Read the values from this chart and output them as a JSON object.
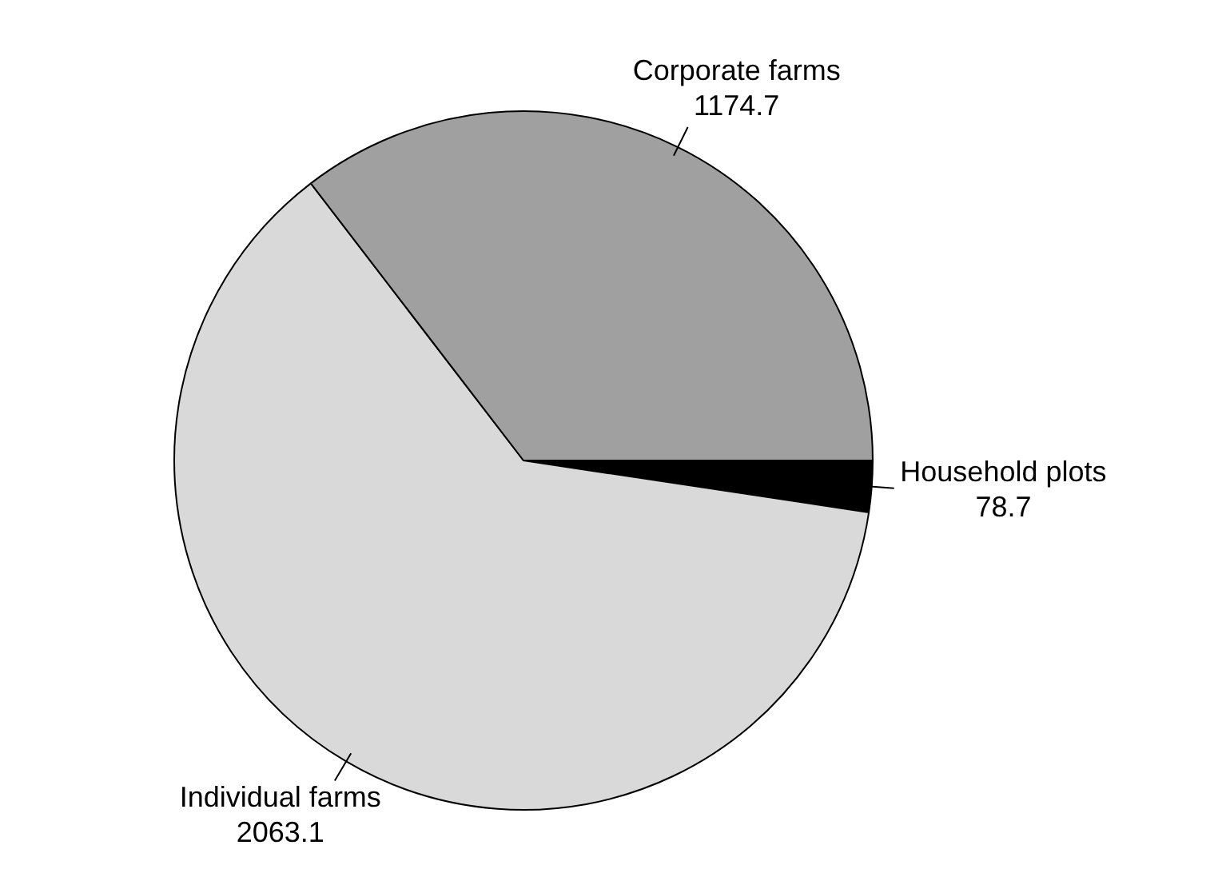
{
  "chart_data": {
    "type": "pie",
    "categories": [
      "Household plots",
      "Individual farms",
      "Corporate farms"
    ],
    "values": [
      78.7,
      2063.1,
      1174.7
    ],
    "colors": [
      "#000000",
      "#d9d9d9",
      "#a0a0a0"
    ],
    "data_labels": true,
    "legend": false
  }
}
